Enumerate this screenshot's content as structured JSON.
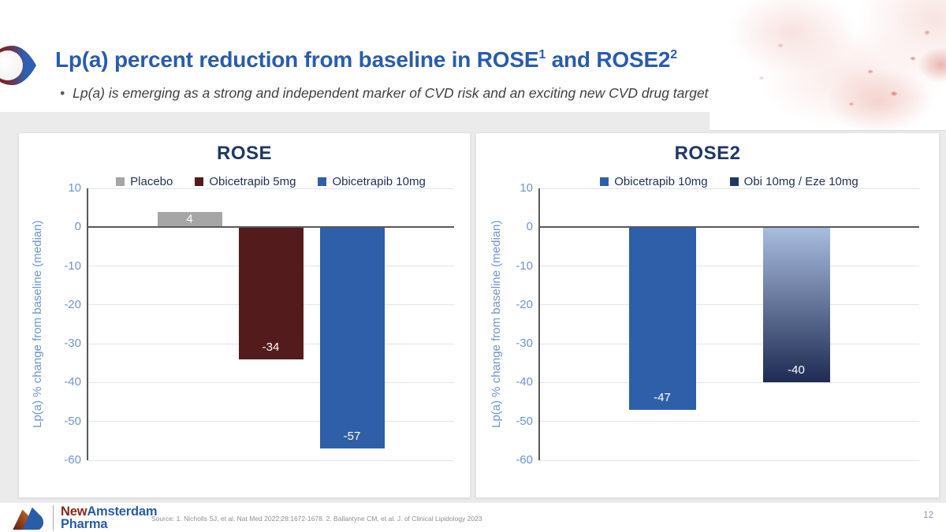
{
  "header": {
    "title_part1": "Lp(a) percent reduction from baseline in ROSE",
    "title_sup1": "1",
    "title_part2": " and ROSE2",
    "title_sup2": "2",
    "bullet_marker": "•",
    "bullet_text": "Lp(a) is emerging as a strong and independent marker of CVD risk and an exciting new CVD drug target"
  },
  "footer": {
    "logo_name_part1": "New",
    "logo_name_part2": "Amsterdam",
    "logo_line2": "Pharma",
    "source": "Source: 1. Nicholls SJ, et al. Nat Med 2022;28:1672-1678. 2. Ballantyne CM, et al. J. of Clinical Lipidology 2023",
    "page_number": "12"
  },
  "colors": {
    "title_blue": "#2a5caa",
    "chart_title_navy": "#1f3864",
    "axis_light_blue": "#6f94ce",
    "gridline": "#dce6f3",
    "zero_line": "#595959",
    "band_gray": "#ebebeb",
    "placebo_gray": "#a6a6a6",
    "obicetrapib_5mg_maroon": "#541b1d",
    "obicetrapib_10mg_blue": "#2f5fa8",
    "obi_eze_navy": "#203864"
  },
  "chart_data": [
    {
      "type": "bar",
      "title": "ROSE",
      "ylabel": "Lp(a) % change from baseline (median)",
      "ylim": [
        -60,
        10
      ],
      "yticks": [
        10,
        0,
        -10,
        -20,
        -30,
        -40,
        -50,
        -60
      ],
      "grid": true,
      "legend_position": "top",
      "categories": [
        "Lp(a)"
      ],
      "series": [
        {
          "name": "Placebo",
          "value": 4,
          "label": "4",
          "color": "#a6a6a6"
        },
        {
          "name": "Obicetrapib 5mg",
          "value": -34,
          "label": "-34",
          "color": "#541b1d"
        },
        {
          "name": "Obicetrapib 10mg",
          "value": -57,
          "label": "-57",
          "color": "#2f5fa8"
        }
      ]
    },
    {
      "type": "bar",
      "title": "ROSE2",
      "ylabel": "Lp(a) % change from baseline (median)",
      "ylim": [
        -60,
        10
      ],
      "yticks": [
        10,
        0,
        -10,
        -20,
        -30,
        -40,
        -50,
        -60
      ],
      "grid": true,
      "legend_position": "top",
      "categories": [
        "Lp(a)"
      ],
      "series": [
        {
          "name": "Obicetrapib 10mg",
          "value": -47,
          "label": "-47",
          "color": "#2f5fa8"
        },
        {
          "name": "Obi 10mg / Eze 10mg",
          "value": -40,
          "label": "-40",
          "color": "#203864",
          "gradient_top": "#a9bddf",
          "gradient_bottom": "#1e2b52"
        }
      ]
    }
  ]
}
